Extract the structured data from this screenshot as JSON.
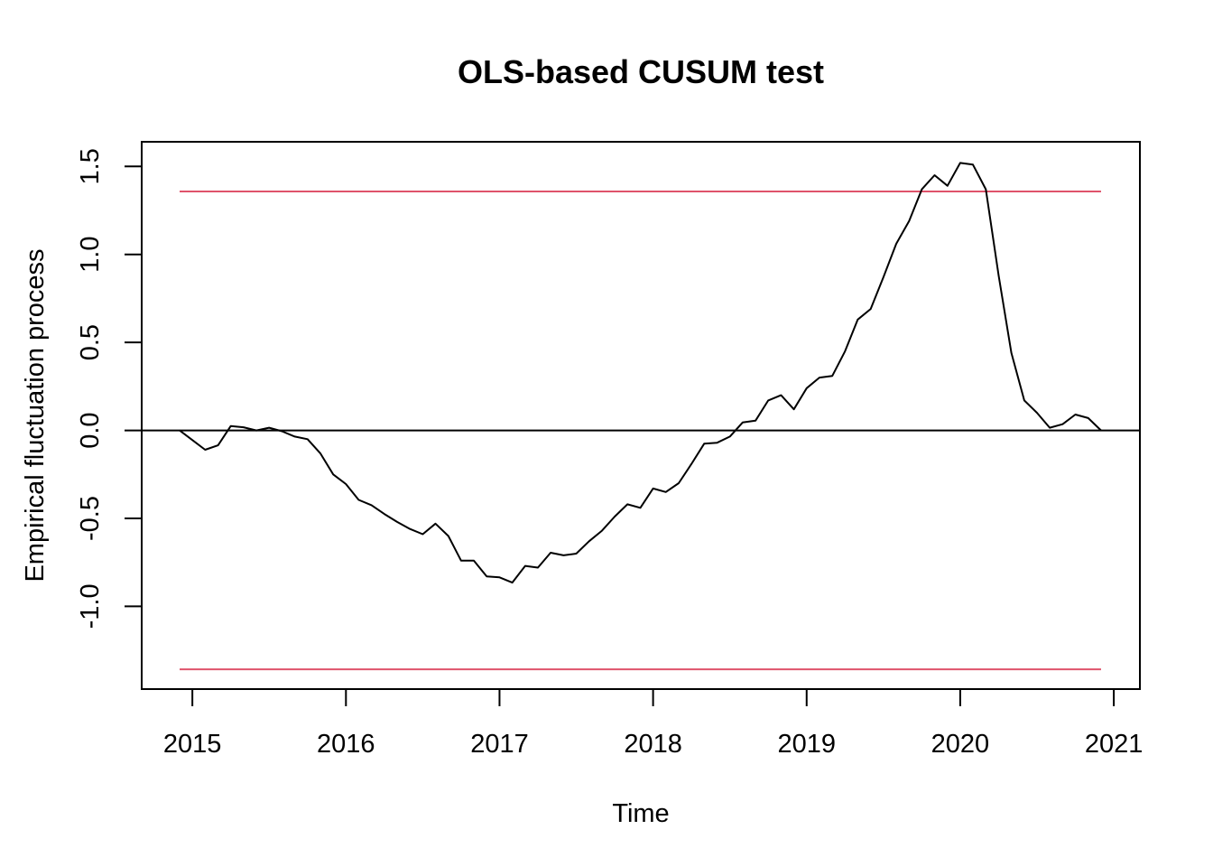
{
  "chart_data": {
    "type": "line",
    "title": "OLS-based CUSUM test",
    "xlabel": "Time",
    "ylabel": "Empirical fluctuation process",
    "xlim": [
      2014.67,
      2021.17
    ],
    "ylim": [
      -1.47,
      1.64
    ],
    "xticks": [
      2015,
      2016,
      2017,
      2018,
      2019,
      2020,
      2021
    ],
    "xtick_labels": [
      "2015",
      "2016",
      "2017",
      "2018",
      "2019",
      "2020",
      "2021"
    ],
    "yticks": [
      -1.0,
      -0.5,
      0.0,
      0.5,
      1.0,
      1.5
    ],
    "ytick_labels": [
      "-1.0",
      "-0.5",
      "0.0",
      "0.5",
      "1.0",
      "1.5"
    ],
    "grid": false,
    "boundary": 1.358,
    "reference_line": 0,
    "colors": {
      "process": "#000000",
      "boundary": "#DF536B",
      "reference": "#000000",
      "frame": "#000000"
    },
    "series": [
      {
        "x": [
          2014.917,
          2015.0,
          2015.083,
          2015.167,
          2015.25,
          2015.333,
          2015.417,
          2015.5,
          2015.583,
          2015.667,
          2015.75,
          2015.833,
          2015.917,
          2016.0,
          2016.083,
          2016.167,
          2016.25,
          2016.333,
          2016.417,
          2016.5,
          2016.583,
          2016.667,
          2016.75,
          2016.833,
          2016.917,
          2017.0,
          2017.083,
          2017.167,
          2017.25,
          2017.333,
          2017.417,
          2017.5,
          2017.583,
          2017.667,
          2017.75,
          2017.833,
          2017.917,
          2018.0,
          2018.083,
          2018.167,
          2018.25,
          2018.333,
          2018.417,
          2018.5,
          2018.583,
          2018.667,
          2018.75,
          2018.833,
          2018.917,
          2019.0,
          2019.083,
          2019.167,
          2019.25,
          2019.333,
          2019.417,
          2019.5,
          2019.583,
          2019.667,
          2019.75,
          2019.833,
          2019.917,
          2020.0,
          2020.083,
          2020.167,
          2020.25,
          2020.333,
          2020.417,
          2020.5,
          2020.583,
          2020.667,
          2020.75,
          2020.833,
          2020.917
        ],
        "values": [
          0.0,
          -0.055,
          -0.11,
          -0.085,
          0.025,
          0.018,
          0.0,
          0.015,
          -0.005,
          -0.035,
          -0.05,
          -0.13,
          -0.25,
          -0.305,
          -0.395,
          -0.425,
          -0.475,
          -0.52,
          -0.56,
          -0.59,
          -0.53,
          -0.6,
          -0.74,
          -0.74,
          -0.83,
          -0.835,
          -0.865,
          -0.77,
          -0.78,
          -0.695,
          -0.71,
          -0.7,
          -0.63,
          -0.57,
          -0.49,
          -0.42,
          -0.44,
          -0.33,
          -0.35,
          -0.3,
          -0.19,
          -0.075,
          -0.07,
          -0.035,
          0.045,
          0.055,
          0.17,
          0.2,
          0.12,
          0.24,
          0.3,
          0.31,
          0.45,
          0.63,
          0.69,
          0.87,
          1.06,
          1.19,
          1.37,
          1.45,
          1.39,
          1.52,
          1.51,
          1.37,
          0.88,
          0.44,
          0.17,
          0.1,
          0.015,
          0.035,
          0.09,
          0.07,
          0.0
        ]
      }
    ]
  }
}
